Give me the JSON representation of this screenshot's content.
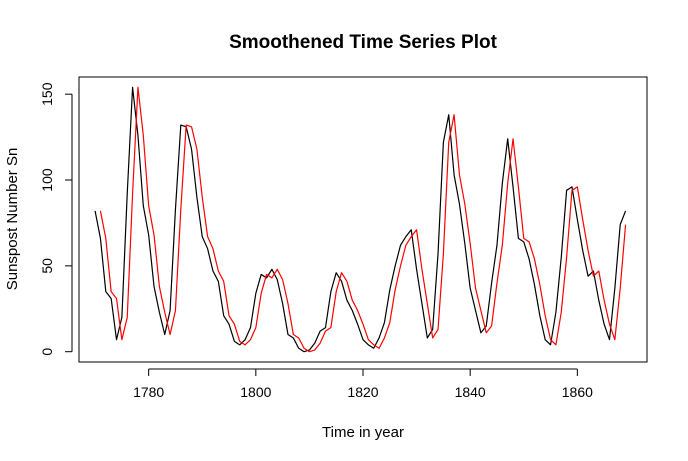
{
  "chart_data": {
    "type": "line",
    "title": "Smoothened Time Series Plot",
    "xlabel": "Time in year",
    "ylabel": "Sunspost Number Sn",
    "xlim": [
      1767,
      1873
    ],
    "ylim": [
      -6,
      160
    ],
    "xticks": [
      1780,
      1800,
      1820,
      1840,
      1860
    ],
    "yticks": [
      0,
      50,
      100,
      150
    ],
    "grid": false,
    "legend": "none",
    "x_start": 1770,
    "series": [
      {
        "color": "#000000",
        "values": [
          82,
          66,
          35,
          31,
          7,
          20,
          92,
          154,
          126,
          85,
          68,
          38,
          23,
          10,
          24,
          83,
          132,
          131,
          118,
          90,
          67,
          60,
          47,
          41,
          21,
          16,
          6,
          4,
          7,
          14,
          34,
          45,
          43,
          48,
          42,
          28,
          10,
          8,
          2,
          0,
          1,
          5,
          12,
          14,
          35,
          46,
          41,
          30,
          24,
          16,
          7,
          4,
          2,
          8,
          17,
          36,
          50,
          62,
          67,
          71,
          48,
          28,
          8,
          13,
          57,
          122,
          138,
          103,
          86,
          63,
          37,
          24,
          11,
          15,
          40,
          62,
          98,
          124,
          96,
          66,
          64,
          54,
          39,
          21,
          7,
          4,
          23,
          55,
          94,
          96,
          77,
          59,
          44,
          47,
          30,
          16,
          7,
          37,
          74,
          82
        ]
      },
      {
        "color": "#ff0000",
        "values": [
          82,
          66,
          35,
          31,
          7,
          20,
          92,
          154,
          126,
          85,
          68,
          38,
          23,
          10,
          24,
          83,
          132,
          131,
          118,
          90,
          67,
          60,
          47,
          41,
          21,
          16,
          6,
          4,
          7,
          14,
          34,
          45,
          43,
          48,
          42,
          28,
          10,
          8,
          2,
          0,
          1,
          5,
          12,
          14,
          35,
          46,
          41,
          30,
          24,
          16,
          7,
          4,
          2,
          8,
          17,
          36,
          50,
          62,
          67,
          71,
          48,
          28,
          8,
          13,
          57,
          122,
          138,
          103,
          86,
          63,
          37,
          24,
          11,
          15,
          40,
          62,
          98,
          124,
          96,
          66,
          64,
          54,
          39,
          21,
          7,
          4,
          23,
          55,
          94,
          96,
          77,
          59,
          44,
          47,
          30,
          16,
          7,
          37,
          74
        ]
      }
    ]
  }
}
